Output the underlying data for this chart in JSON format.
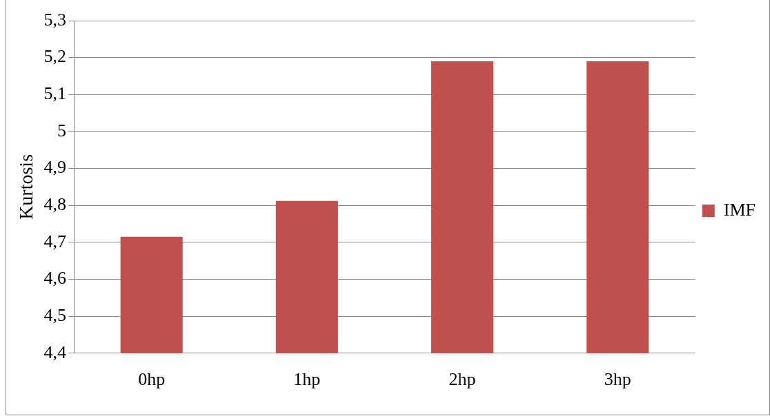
{
  "chart_data": {
    "type": "bar",
    "ylabel": "Kurtosis",
    "categories": [
      "0hp",
      "1hp",
      "2hp",
      "3hp"
    ],
    "series": [
      {
        "name": "IMF",
        "color": "#c0504d",
        "values": [
          4.715,
          4.812,
          5.19,
          5.19
        ]
      }
    ],
    "ylim": [
      4.4,
      5.3
    ],
    "yticks": [
      {
        "value": 4.4,
        "label": "4,4"
      },
      {
        "value": 4.5,
        "label": "4,5"
      },
      {
        "value": 4.6,
        "label": "4,6"
      },
      {
        "value": 4.7,
        "label": "4,7"
      },
      {
        "value": 4.8,
        "label": "4,8"
      },
      {
        "value": 4.9,
        "label": "4,9"
      },
      {
        "value": 5,
        "label": "5"
      },
      {
        "value": 5.1,
        "label": "5,1"
      },
      {
        "value": 5.2,
        "label": "5,2"
      },
      {
        "value": 5.3,
        "label": "5,3"
      }
    ],
    "grid": "y",
    "legend": "right"
  }
}
